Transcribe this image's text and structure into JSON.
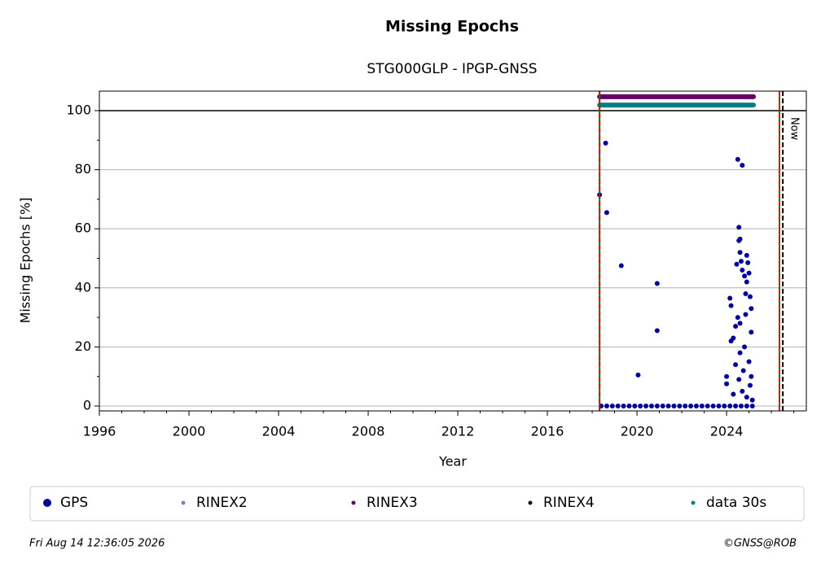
{
  "chart_data": {
    "type": "scatter",
    "title": "Missing Epochs",
    "subtitle": "STG000GLP - IPGP-GNSS",
    "xlabel": "Year",
    "ylabel": "Missing Epochs [%]",
    "xlim": [
      1996,
      2027.56
    ],
    "ylim": [
      -1.65,
      106.6
    ],
    "xticks": [
      1996,
      2000,
      2004,
      2008,
      2012,
      2016,
      2020,
      2024
    ],
    "xminorticks": [
      1997,
      1998,
      1999,
      2001,
      2002,
      2003,
      2005,
      2006,
      2007,
      2009,
      2010,
      2011,
      2013,
      2014,
      2015,
      2017,
      2018,
      2019,
      2021,
      2022,
      2023,
      2025,
      2026,
      2027
    ],
    "yticks": [
      0,
      20,
      40,
      60,
      80,
      100
    ],
    "yminorticks": [
      10,
      30,
      50,
      70,
      90
    ],
    "grid": true,
    "hline": 100,
    "vlines": [
      {
        "x": 2018.33,
        "color": "#008000",
        "style": "solid"
      },
      {
        "x": 2018.33,
        "color": "#e00000",
        "style": "dashed"
      },
      {
        "x": 2026.36,
        "color": "#008000",
        "style": "solid"
      },
      {
        "x": 2026.36,
        "color": "#e00000",
        "style": "dashed"
      },
      {
        "x": 2026.51,
        "color": "#000000",
        "style": "dashed"
      }
    ],
    "annotation": {
      "text": "Now",
      "x": 2026.51,
      "y": 100
    },
    "series": [
      {
        "name": "GPS",
        "color": "#000099",
        "x": [
          2018.33,
          2018.6,
          2018.65,
          2019.3,
          2020.05,
          2020.9,
          2020.9,
          2024.0,
          2024.0,
          2024.15,
          2024.2,
          2024.2,
          2024.3,
          2024.4,
          2024.45,
          2024.5,
          2024.55,
          2024.55,
          2024.6,
          2024.6,
          2024.7,
          2024.65,
          2024.7,
          2024.8,
          2024.85,
          2024.9,
          2024.9,
          2024.95,
          2025.0,
          2025.05,
          2025.1,
          2024.5,
          2024.6,
          2024.8,
          2025.0,
          2025.1,
          2024.7,
          2024.9,
          2025.1,
          2024.4,
          2024.6,
          2024.75,
          2025.05,
          2024.3,
          2024.55,
          2024.85,
          2025.15,
          2018.4,
          2018.65,
          2018.9,
          2019.15,
          2019.4,
          2019.65,
          2019.9,
          2020.15,
          2020.4,
          2020.65,
          2020.9,
          2021.15,
          2021.4,
          2021.65,
          2021.9,
          2022.15,
          2022.4,
          2022.65,
          2022.9,
          2023.15,
          2023.4,
          2023.65,
          2023.9,
          2024.15,
          2024.4,
          2024.65,
          2024.9,
          2025.15
        ],
        "values": [
          71.5,
          89,
          65.5,
          47.5,
          10.5,
          41.5,
          25.5,
          10,
          7.5,
          36.5,
          34,
          22,
          23,
          14,
          48,
          83.5,
          60.5,
          56,
          56.5,
          52,
          81.5,
          49,
          46,
          44,
          38,
          42,
          51,
          48.5,
          45,
          37,
          33,
          30,
          28,
          20,
          15,
          10,
          5,
          3,
          25,
          27,
          18,
          12,
          7,
          4,
          9,
          31,
          2,
          0,
          0,
          0,
          0,
          0,
          0,
          0,
          0,
          0,
          0,
          0,
          0,
          0,
          0,
          0,
          0,
          0,
          0,
          0,
          0,
          0,
          0,
          0,
          0,
          0,
          0,
          0,
          0
        ]
      },
      {
        "name": "RINEX2",
        "color": "#8080c0"
      },
      {
        "name": "RINEX3",
        "color": "#660066",
        "x": [
          2018.33,
          2025.2
        ],
        "values": [
          104.7,
          104.7
        ]
      },
      {
        "name": "RINEX4",
        "color": "#1a0020"
      },
      {
        "name": "data 30s",
        "color": "#008080",
        "x": [
          2018.33,
          2025.2
        ],
        "values": [
          101.9,
          101.9
        ]
      }
    ]
  },
  "footer": {
    "left": "Fri Aug 14 12:36:05 2026",
    "right": "©GNSS@ROB"
  }
}
